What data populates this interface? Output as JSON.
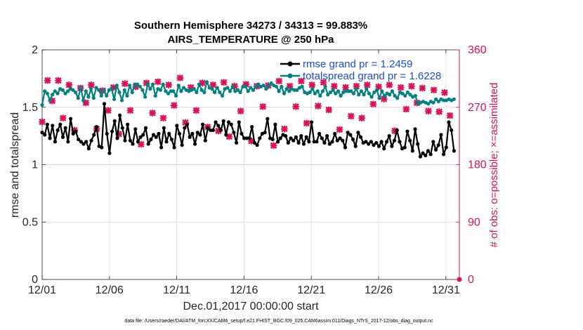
{
  "chart_data": {
    "type": "line",
    "title": "Southern Hemisphere 34273 / 34313 = 99.883%",
    "subtitle": "AIRS_TEMPERATURE @ 250 hPa",
    "xlabel": "Dec.01,2017 00:00:00 start",
    "ylabel": "rmse and totalspread",
    "y2label": "# of obs: o=possible; ×=assimilated",
    "xlim": [
      0,
      31
    ],
    "ylim": [
      0,
      2
    ],
    "y2lim": [
      0,
      360
    ],
    "xticks": [
      {
        "x": 0,
        "label": "12/01"
      },
      {
        "x": 5,
        "label": "12/06"
      },
      {
        "x": 10,
        "label": "12/11"
      },
      {
        "x": 15,
        "label": "12/16"
      },
      {
        "x": 20,
        "label": "12/21"
      },
      {
        "x": 25,
        "label": "12/26"
      },
      {
        "x": 30,
        "label": "12/31"
      }
    ],
    "yticks": [
      {
        "y": 0,
        "label": "0"
      },
      {
        "y": 0.5,
        "label": "0.5"
      },
      {
        "y": 1,
        "label": "1"
      },
      {
        "y": 1.5,
        "label": "1.5"
      },
      {
        "y": 2,
        "label": "2"
      }
    ],
    "y2ticks": [
      {
        "y": 0,
        "label": "0"
      },
      {
        "y": 90,
        "label": "90"
      },
      {
        "y": 180,
        "label": "180"
      },
      {
        "y": 270,
        "label": "270"
      },
      {
        "y": 360,
        "label": "360"
      }
    ],
    "grid": true,
    "legend_position": "top-right",
    "series": [
      {
        "name": "rmse grand pr = 1.2459",
        "axis": "left",
        "color": "#000000",
        "marker": "circle",
        "values": [
          1.28,
          1.26,
          1.35,
          1.23,
          1.34,
          1.2,
          1.3,
          1.35,
          1.24,
          1.32,
          1.2,
          1.4,
          1.27,
          1.29,
          1.22,
          1.2,
          1.18,
          1.2,
          1.14,
          1.21,
          1.26,
          1.33,
          1.16,
          1.15,
          1.53,
          1.27,
          1.1,
          1.29,
          1.38,
          1.23,
          1.43,
          1.32,
          1.21,
          1.35,
          1.21,
          1.18,
          1.31,
          1.2,
          1.24,
          1.26,
          1.32,
          1.18,
          1.22,
          1.26,
          1.24,
          1.27,
          1.15,
          1.32,
          1.2,
          1.27,
          1.22,
          1.15,
          1.34,
          1.27,
          1.17,
          1.32,
          1.35,
          1.24,
          1.27,
          1.18,
          1.28,
          1.26,
          1.35,
          1.21,
          1.32,
          1.3,
          1.3,
          1.37,
          1.34,
          1.3,
          1.38,
          1.26,
          1.37,
          1.35,
          1.28,
          1.19,
          1.37,
          1.27,
          1.23,
          1.23,
          1.23,
          1.33,
          1.19,
          1.17,
          1.23,
          1.27,
          1.28,
          1.4,
          1.23,
          1.22,
          1.35,
          1.2,
          1.23,
          1.26,
          1.25,
          1.19,
          1.23,
          1.21,
          1.24,
          1.19,
          1.25,
          1.18,
          1.24,
          1.2,
          1.37,
          1.2,
          1.2,
          1.27,
          1.23,
          1.19,
          1.25,
          1.18,
          1.2,
          1.27,
          1.21,
          1.23,
          1.21,
          1.15,
          1.28,
          1.26,
          1.22,
          1.16,
          1.28,
          1.24,
          1.19,
          1.2,
          1.18,
          1.2,
          1.17,
          1.19,
          1.16,
          1.2,
          1.14,
          1.2,
          1.25,
          1.16,
          1.21,
          1.3,
          1.2,
          1.14,
          1.15,
          1.29,
          1.21,
          1.12,
          1.31,
          1.18,
          1.07,
          1.1,
          1.08,
          1.12,
          1.09,
          1.2,
          1.13,
          1.17,
          1.26,
          1.09,
          1.15,
          1.37,
          1.3,
          1.12
        ]
      },
      {
        "name": "totalspread grand pr = 1.6228",
        "axis": "left",
        "color": "#008080",
        "marker": "circle",
        "values": [
          1.52,
          1.64,
          1.62,
          1.56,
          1.61,
          1.64,
          1.62,
          1.66,
          1.65,
          1.62,
          1.64,
          1.66,
          1.65,
          1.63,
          1.58,
          1.67,
          1.56,
          1.64,
          1.59,
          1.66,
          1.58,
          1.67,
          1.65,
          1.6,
          1.65,
          1.6,
          1.65,
          1.66,
          1.57,
          1.69,
          1.63,
          1.56,
          1.65,
          1.6,
          1.69,
          1.63,
          1.7,
          1.7,
          1.68,
          1.65,
          1.59,
          1.7,
          1.66,
          1.7,
          1.6,
          1.66,
          1.65,
          1.7,
          1.64,
          1.62,
          1.64,
          1.64,
          1.6,
          1.69,
          1.64,
          1.67,
          1.65,
          1.64,
          1.65,
          1.66,
          1.63,
          1.7,
          1.65,
          1.63,
          1.72,
          1.67,
          1.66,
          1.63,
          1.67,
          1.63,
          1.6,
          1.66,
          1.67,
          1.64,
          1.68,
          1.64,
          1.65,
          1.63,
          1.68,
          1.68,
          1.64,
          1.67,
          1.65,
          1.68,
          1.7,
          1.68,
          1.69,
          1.66,
          1.69,
          1.71,
          1.69,
          1.68,
          1.64,
          1.68,
          1.62,
          1.66,
          1.64,
          1.66,
          1.65,
          1.65,
          1.67,
          1.68,
          1.63,
          1.62,
          1.63,
          1.66,
          1.62,
          1.64,
          1.6,
          1.64,
          1.68,
          1.61,
          1.63,
          1.65,
          1.62,
          1.64,
          1.6,
          1.63,
          1.64,
          1.64,
          1.64,
          1.62,
          1.66,
          1.61,
          1.64,
          1.61,
          1.66,
          1.62,
          1.59,
          1.63,
          1.65,
          1.58,
          1.64,
          1.6,
          1.62,
          1.61,
          1.64,
          1.6,
          1.58,
          1.63,
          1.62,
          1.6,
          1.63,
          1.61,
          1.59,
          1.6,
          1.53,
          1.54,
          1.55,
          1.54,
          1.53,
          1.55,
          1.54,
          1.57,
          1.55,
          1.57,
          1.56,
          1.56,
          1.57,
          1.56,
          1.57
        ]
      },
      {
        "name": "obs possible",
        "axis": "right",
        "color": "#d4145a",
        "marker": "circle",
        "values": [
          {
            "x": 31,
            "y": 0
          }
        ]
      },
      {
        "name": "obs assimilated",
        "axis": "right",
        "color": "#d4145a",
        "marker": "x",
        "x": [
          0.0,
          0.4,
          0.75,
          1.2,
          1.55,
          2.0,
          2.4,
          2.85,
          3.25,
          3.65,
          4.05,
          4.5,
          4.9,
          5.3,
          5.7,
          6.15,
          6.55,
          6.95,
          7.35,
          7.75,
          8.2,
          8.6,
          9.0,
          9.4,
          9.8,
          10.25,
          10.65,
          11.05,
          11.45,
          11.9,
          12.3,
          12.7,
          13.1,
          13.5,
          13.9,
          14.3,
          14.75,
          15.15,
          15.55,
          15.95,
          16.4,
          16.8,
          17.2,
          17.6,
          18.0,
          18.4,
          18.85,
          19.25,
          19.65,
          20.05,
          20.5,
          20.9,
          21.3,
          21.7,
          22.1,
          22.55,
          22.95,
          23.35,
          23.75,
          24.15,
          24.6,
          25.0,
          25.4,
          25.8,
          26.2,
          26.65,
          27.05,
          27.45,
          27.85,
          28.25,
          28.7,
          29.1,
          29.5,
          29.9,
          30.3
        ],
        "values": [
          247,
          312,
          280,
          312,
          253,
          305,
          234,
          300,
          277,
          305,
          236,
          296,
          265,
          301,
          228,
          307,
          265,
          302,
          212,
          308,
          261,
          310,
          253,
          305,
          273,
          316,
          246,
          301,
          265,
          308,
          239,
          305,
          233,
          309,
          224,
          303,
          264,
          306,
          217,
          303,
          271,
          304,
          210,
          311,
          236,
          303,
          271,
          311,
          245,
          305,
          272,
          309,
          266,
          303,
          235,
          301,
          256,
          303,
          253,
          305,
          275,
          302,
          283,
          305,
          233,
          301,
          267,
          303,
          277,
          300,
          264,
          297,
          263,
          293,
          257
        ]
      }
    ]
  },
  "footer": "data file: /Users/raeder/DAI/ATM_forcXX/CAM6_setup/f.e21.FHIST_BGC.f09_025.CAM6assim.011/Diags_NTrS_2017-12/obs_diag_output.nc"
}
